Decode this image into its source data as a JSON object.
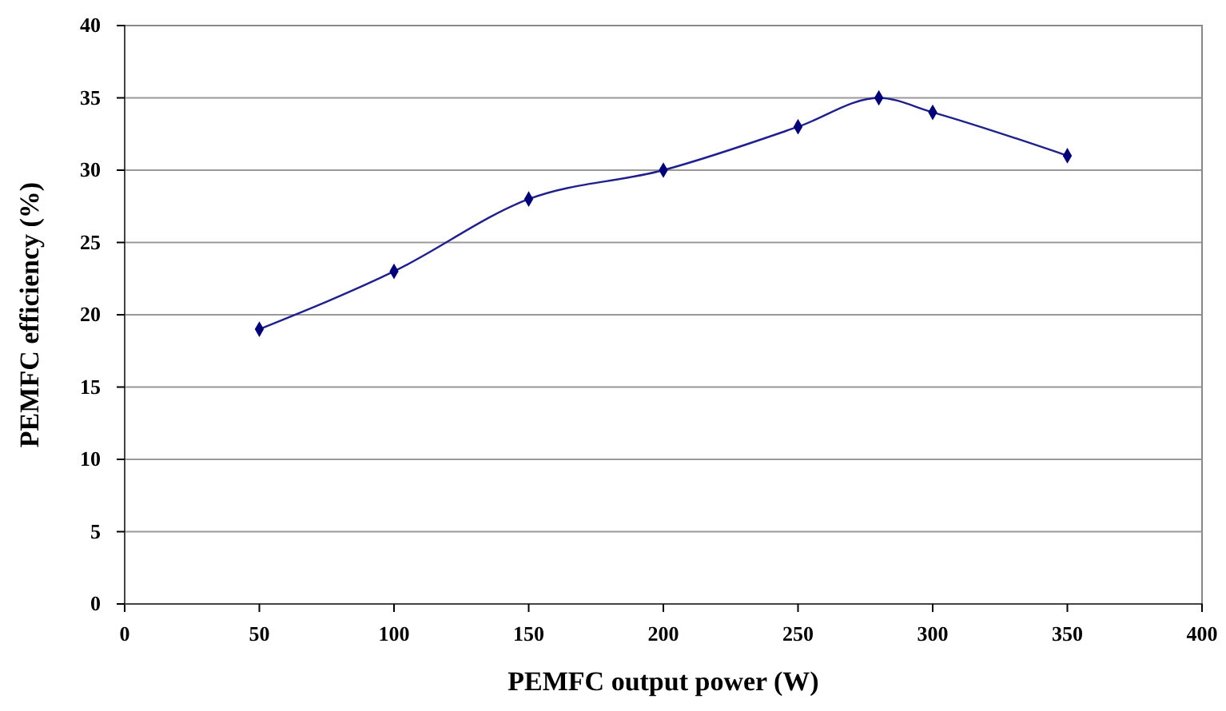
{
  "chart_data": {
    "type": "line",
    "xlabel": "PEMFC output power (W)",
    "ylabel": "PEMFC efficiency (%)",
    "x": [
      50,
      100,
      150,
      200,
      250,
      280,
      300,
      350
    ],
    "series": [
      {
        "color": "#1f1f8f",
        "values": [
          19,
          23,
          28,
          30,
          33,
          35,
          34,
          31
        ]
      }
    ],
    "xlim": [
      0,
      400
    ],
    "xticks": [
      0,
      50,
      100,
      150,
      200,
      250,
      300,
      350,
      400
    ],
    "ylim": [
      0,
      40
    ],
    "yticks": [
      0,
      5,
      10,
      15,
      20,
      25,
      30,
      35,
      40
    ],
    "grid": "y",
    "marker": "diamond",
    "line_style": "solid"
  }
}
